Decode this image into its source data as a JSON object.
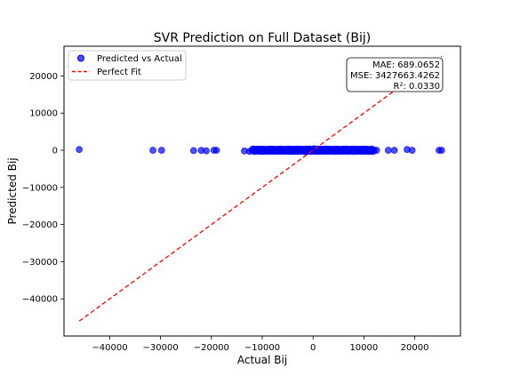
{
  "chart_data": {
    "type": "scatter",
    "title": "SVR Prediction on Full Dataset (Bij)",
    "xlabel": "Actual Bij",
    "ylabel": "Predicted Bij",
    "xlim": [
      -49000,
      29000
    ],
    "ylim": [
      -50000,
      28000
    ],
    "xticks": [
      -40000,
      -30000,
      -20000,
      -10000,
      0,
      10000,
      20000
    ],
    "yticks": [
      -40000,
      -30000,
      -20000,
      -10000,
      0,
      10000,
      20000
    ],
    "xtick_labels": [
      "−40000",
      "−30000",
      "−20000",
      "−10000",
      "0",
      "10000",
      "20000"
    ],
    "ytick_labels": [
      "−40000",
      "−30000",
      "−20000",
      "−10000",
      "0",
      "10000",
      "20000"
    ],
    "grid": false,
    "legend": {
      "placement": "top-left",
      "entries": [
        "Predicted vs Actual",
        "Perfect Fit"
      ]
    },
    "series": [
      {
        "name": "Predicted vs Actual",
        "kind": "scatter",
        "color": "#0000ff",
        "points": [
          [
            -46000,
            200
          ],
          [
            -31500,
            0
          ],
          [
            -29800,
            0
          ],
          [
            -23500,
            -100
          ],
          [
            -22000,
            -50
          ],
          [
            -21000,
            -150
          ],
          [
            -19500,
            0
          ],
          [
            -19000,
            0
          ],
          [
            -13500,
            -200
          ],
          [
            -12500,
            -300
          ],
          [
            -12000,
            0
          ],
          [
            -11000,
            -100
          ],
          [
            -10500,
            100
          ],
          [
            -9800,
            -200
          ],
          [
            -9000,
            0
          ],
          [
            -8200,
            200
          ],
          [
            -7500,
            -250
          ],
          [
            -6800,
            0
          ],
          [
            -6000,
            150
          ],
          [
            -5300,
            -150
          ],
          [
            -4600,
            100
          ],
          [
            -4000,
            -300
          ],
          [
            -3300,
            250
          ],
          [
            -2700,
            -100
          ],
          [
            -2100,
            200
          ],
          [
            -1500,
            -400
          ],
          [
            -900,
            300
          ],
          [
            -300,
            -200
          ],
          [
            200,
            400
          ],
          [
            700,
            -300
          ],
          [
            1200,
            200
          ],
          [
            1800,
            -150
          ],
          [
            2400,
            300
          ],
          [
            3000,
            -100
          ],
          [
            3700,
            200
          ],
          [
            4300,
            -200
          ],
          [
            5000,
            100
          ],
          [
            5800,
            -100
          ],
          [
            6500,
            250
          ],
          [
            7300,
            0
          ],
          [
            8000,
            -200
          ],
          [
            8800,
            100
          ],
          [
            9600,
            -50
          ],
          [
            10500,
            0
          ],
          [
            11500,
            0
          ],
          [
            12500,
            0
          ],
          [
            14800,
            0
          ],
          [
            16000,
            0
          ],
          [
            18500,
            200
          ],
          [
            19500,
            0
          ],
          [
            24800,
            0
          ],
          [
            25300,
            0
          ]
        ]
      },
      {
        "name": "Perfect Fit",
        "kind": "line",
        "color": "#ff0000",
        "dash": "dashed",
        "points": [
          [
            -46000,
            -46000
          ],
          [
            25300,
            25300
          ]
        ]
      }
    ],
    "annotation": {
      "lines": [
        "MAE: 689.0652",
        "MSE: 3427663.4262",
        "R²: 0.0330"
      ],
      "placement": "top-right"
    }
  }
}
